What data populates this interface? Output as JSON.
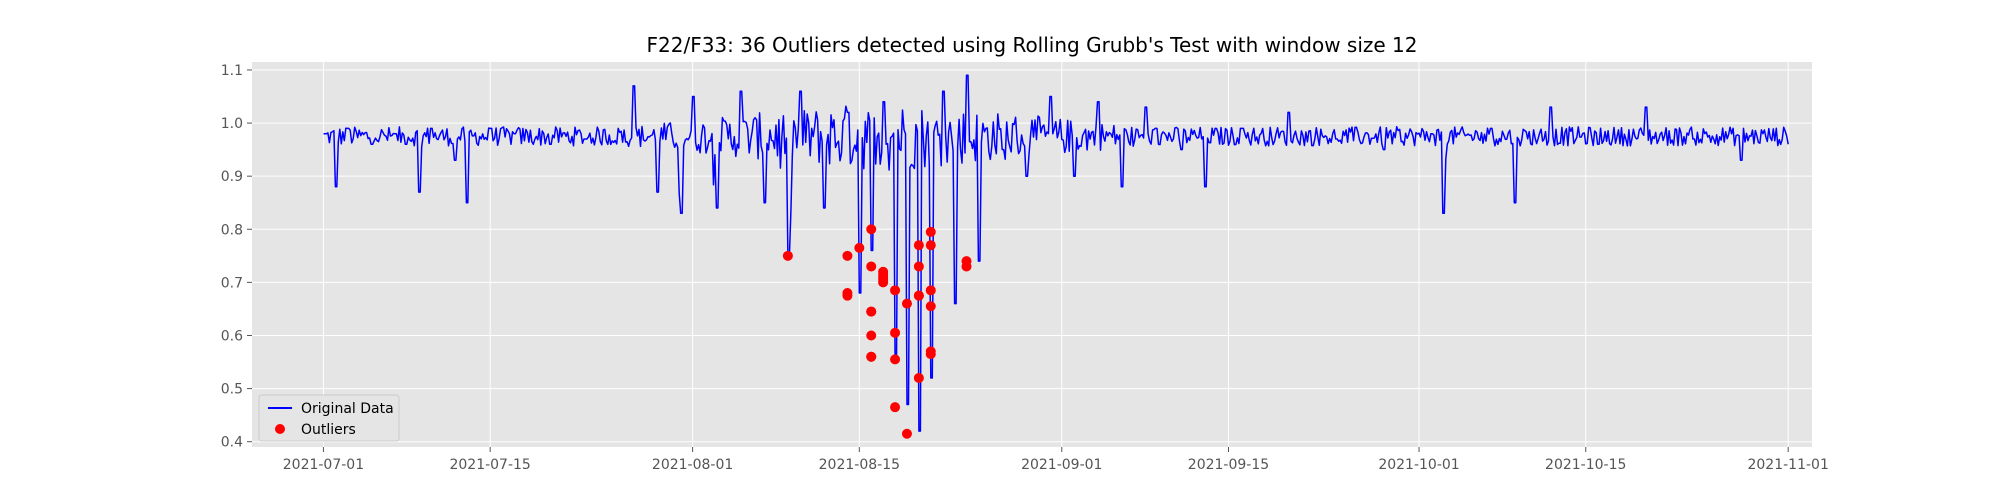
{
  "chart_data": {
    "type": "line",
    "title": "F22/F33: 36 Outliers detected using Rolling Grubb's Test with window size 12",
    "xlabel": "",
    "ylabel": "",
    "xlim": [
      "2021-06-25",
      "2021-11-03"
    ],
    "ylim": [
      0.39,
      1.115
    ],
    "x_ticks": [
      "2021-07-01",
      "2021-07-15",
      "2021-08-01",
      "2021-08-15",
      "2021-09-01",
      "2021-09-15",
      "2021-10-01",
      "2021-10-15",
      "2021-11-01"
    ],
    "y_ticks": [
      0.4,
      0.5,
      0.6,
      0.7,
      0.8,
      0.9,
      1.0,
      1.1
    ],
    "y_tick_labels": [
      "0.4",
      "0.5",
      "0.6",
      "0.7",
      "0.8",
      "0.9",
      "1.0",
      "1.1"
    ],
    "grid": true,
    "legend_position": "lower-left",
    "series": [
      {
        "name": "Original Data",
        "color": "#0000ff",
        "style": "line",
        "x": [
          "2021-07-01",
          "2021-07-02",
          "2021-07-03",
          "2021-07-05",
          "2021-07-07",
          "2021-07-09",
          "2021-07-10",
          "2021-07-12",
          "2021-07-13",
          "2021-07-15",
          "2021-07-17",
          "2021-07-20",
          "2021-07-23",
          "2021-07-27",
          "2021-07-29",
          "2021-07-31",
          "2021-08-01",
          "2021-08-03",
          "2021-08-05",
          "2021-08-07",
          "2021-08-09",
          "2021-08-10",
          "2021-08-12",
          "2021-08-14",
          "2021-08-15",
          "2021-08-16",
          "2021-08-17",
          "2021-08-18",
          "2021-08-19",
          "2021-08-20",
          "2021-08-21",
          "2021-08-22",
          "2021-08-23",
          "2021-08-24",
          "2021-08-25",
          "2021-08-27",
          "2021-08-29",
          "2021-08-31",
          "2021-09-02",
          "2021-09-04",
          "2021-09-06",
          "2021-09-08",
          "2021-09-11",
          "2021-09-13",
          "2021-09-16",
          "2021-09-20",
          "2021-09-24",
          "2021-09-28",
          "2021-10-02",
          "2021-10-03",
          "2021-10-07",
          "2021-10-09",
          "2021-10-12",
          "2021-10-16",
          "2021-10-20",
          "2021-10-24",
          "2021-10-28",
          "2021-11-01"
        ],
        "y": [
          0.98,
          0.88,
          0.99,
          0.96,
          0.98,
          0.87,
          0.99,
          0.93,
          0.85,
          0.99,
          0.98,
          0.96,
          0.97,
          1.07,
          0.87,
          0.83,
          1.05,
          0.84,
          1.06,
          0.85,
          0.75,
          1.06,
          0.84,
          1.02,
          0.68,
          0.76,
          1.04,
          0.55,
          0.47,
          0.42,
          0.52,
          1.06,
          0.66,
          1.09,
          0.74,
          0.95,
          0.9,
          1.05,
          0.9,
          1.04,
          0.88,
          1.03,
          0.95,
          0.88,
          0.99,
          1.02,
          0.97,
          0.95,
          0.98,
          0.83,
          0.99,
          0.85,
          1.03,
          0.96,
          1.03,
          0.97,
          0.93,
          0.96
        ]
      },
      {
        "name": "Outliers",
        "color": "#ff0000",
        "style": "scatter",
        "x": [
          "2021-08-09",
          "2021-08-14",
          "2021-08-14",
          "2021-08-14",
          "2021-08-15",
          "2021-08-16",
          "2021-08-16",
          "2021-08-16",
          "2021-08-16",
          "2021-08-16",
          "2021-08-16",
          "2021-08-16",
          "2021-08-17",
          "2021-08-17",
          "2021-08-17",
          "2021-08-17",
          "2021-08-17",
          "2021-08-18",
          "2021-08-18",
          "2021-08-18",
          "2021-08-18",
          "2021-08-19",
          "2021-08-19",
          "2021-08-20",
          "2021-08-20",
          "2021-08-20",
          "2021-08-20",
          "2021-08-20",
          "2021-08-21",
          "2021-08-21",
          "2021-08-21",
          "2021-08-21",
          "2021-08-21",
          "2021-08-21",
          "2021-08-24",
          "2021-08-24"
        ],
        "y": [
          0.75,
          0.75,
          0.68,
          0.675,
          0.765,
          0.73,
          0.645,
          0.6,
          0.56,
          0.8,
          0.56,
          0.645,
          0.71,
          0.715,
          0.7,
          0.72,
          0.705,
          0.605,
          0.555,
          0.465,
          0.685,
          0.415,
          0.66,
          0.77,
          0.73,
          0.675,
          0.52,
          0.675,
          0.565,
          0.57,
          0.655,
          0.685,
          0.77,
          0.795,
          0.74,
          0.73
        ]
      }
    ]
  }
}
